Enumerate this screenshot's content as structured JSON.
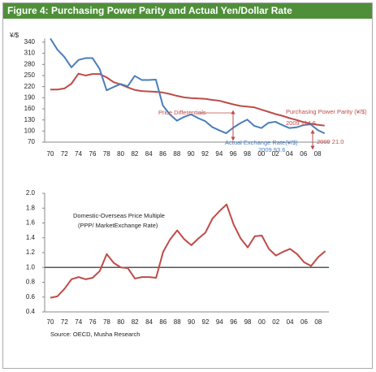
{
  "figure_title": "Figure 4: Purchasing Power Parity and Actual Yen/Dollar Rate",
  "source": "Source: OECD, Musha Research",
  "chart_data": [
    {
      "type": "line",
      "y_label": "¥/$",
      "categories": [
        "70",
        null,
        "72",
        null,
        "74",
        null,
        "76",
        null,
        "78",
        null,
        "80",
        null,
        "82",
        null,
        "84",
        null,
        "86",
        null,
        "88",
        null,
        "90",
        null,
        "92",
        null,
        "94",
        null,
        "96",
        null,
        "98",
        null,
        "00",
        null,
        "02",
        null,
        "04",
        null,
        "06",
        null,
        "08",
        null
      ],
      "ylim": [
        70,
        350
      ],
      "yticks": [
        70,
        100,
        130,
        160,
        190,
        220,
        250,
        280,
        310,
        340
      ],
      "series": [
        {
          "name": "Purchasing Power Parity (¥/$)",
          "color": "#be4b48",
          "values": [
            212,
            212,
            215,
            228,
            255,
            250,
            254,
            254,
            245,
            232,
            226,
            218,
            211,
            208,
            207,
            206,
            204,
            200,
            195,
            191,
            189,
            188,
            187,
            184,
            182,
            177,
            172,
            168,
            166,
            164,
            158,
            152,
            146,
            141,
            135,
            130,
            124,
            120,
            117,
            114.6
          ]
        },
        {
          "name": "Actual Exchange Rate(¥/$)",
          "color": "#4a7ebb",
          "values": [
            350,
            320,
            300,
            272,
            292,
            297,
            297,
            268,
            210,
            219,
            227,
            221,
            249,
            238,
            238,
            239,
            169,
            145,
            128,
            138,
            145,
            135,
            127,
            111,
            102,
            94,
            109,
            121,
            131,
            114,
            108,
            122,
            125,
            116,
            108,
            110,
            116,
            118,
            103,
            93.6
          ]
        }
      ],
      "annotations": [
        {
          "text": "Price Differentials"
        },
        {
          "text": "2009  114.6"
        },
        {
          "text": "2009  93.6"
        },
        {
          "text": "2009  21.0"
        }
      ]
    },
    {
      "type": "line",
      "categories": [
        "70",
        null,
        "72",
        null,
        "74",
        null,
        "76",
        null,
        "78",
        null,
        "80",
        null,
        "82",
        null,
        "84",
        null,
        "86",
        null,
        "88",
        null,
        "90",
        null,
        "92",
        null,
        "94",
        null,
        "96",
        null,
        "98",
        null,
        "00",
        null,
        "02",
        null,
        "04",
        null,
        "06",
        null,
        "08",
        null
      ],
      "ylim": [
        0.4,
        2.0
      ],
      "yticks": [
        0.4,
        0.6,
        0.8,
        {
          "value": 1,
          "label": "1.0"
        },
        1.2,
        1.4,
        1.6,
        1.8,
        {
          "value": 2,
          "label": "2.0"
        }
      ],
      "reference_line": 1,
      "color": "#be4b48",
      "values": [
        0.59,
        0.61,
        0.71,
        0.84,
        0.87,
        0.84,
        0.86,
        0.95,
        1.18,
        1.06,
        1.0,
        0.99,
        0.85,
        0.87,
        0.87,
        0.86,
        1.21,
        1.38,
        1.5,
        1.38,
        1.3,
        1.39,
        1.47,
        1.66,
        1.76,
        1.85,
        1.58,
        1.39,
        1.27,
        1.42,
        1.43,
        1.25,
        1.16,
        1.21,
        1.25,
        1.18,
        1.07,
        1.02,
        1.14,
        1.22
      ],
      "annotations": [
        {
          "text": "Domestic-Overseas Price Multiple"
        },
        {
          "text": "(PPP/ MarketExchange Rate)"
        }
      ]
    }
  ]
}
